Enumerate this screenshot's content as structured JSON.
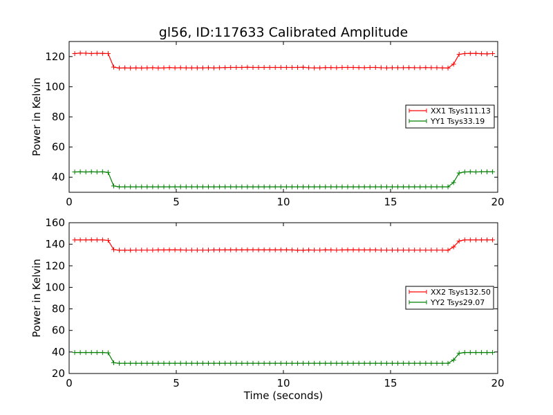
{
  "chart_data": [
    {
      "type": "line",
      "title": "gl56, ID:117633 Calibrated Amplitude",
      "xlabel": "",
      "ylabel": "Power in Kelvin",
      "xlim": [
        0,
        20
      ],
      "ylim": [
        30,
        130
      ],
      "xticks": [
        "0",
        "5",
        "10",
        "15",
        "20"
      ],
      "yticks": [
        "40",
        "60",
        "80",
        "100",
        "120"
      ],
      "ytick_values": [
        40,
        60,
        80,
        100,
        120
      ],
      "legend_position": "center-right",
      "grid": false,
      "series": [
        {
          "name": "XX1 Tsys111.13",
          "color": "#ff0000",
          "marker": "plus",
          "x": [
            0.26,
            0.52,
            0.78,
            1.04,
            1.3,
            1.56,
            1.82,
            2.08,
            2.34,
            2.6,
            2.86,
            3.12,
            3.38,
            3.64,
            3.9,
            4.16,
            4.42,
            4.68,
            4.94,
            5.2,
            5.46,
            5.72,
            5.98,
            6.24,
            6.5,
            6.76,
            7.02,
            7.28,
            7.54,
            7.8,
            8.06,
            8.32,
            8.58,
            8.84,
            9.1,
            9.36,
            9.62,
            9.88,
            10.14,
            10.4,
            10.66,
            10.92,
            11.18,
            11.44,
            11.7,
            11.96,
            12.22,
            12.48,
            12.74,
            13.0,
            13.26,
            13.52,
            13.78,
            14.04,
            14.3,
            14.56,
            14.82,
            15.08,
            15.34,
            15.6,
            15.86,
            16.12,
            16.38,
            16.64,
            16.9,
            17.16,
            17.42,
            17.68,
            17.94,
            18.2,
            18.46,
            18.72,
            18.98,
            19.24,
            19.5,
            19.76
          ],
          "y": [
            122,
            122.3,
            122.2,
            122,
            122.2,
            122.1,
            122,
            113,
            112.4,
            112.5,
            112.4,
            112.5,
            112.4,
            112.5,
            112.6,
            112.4,
            112.5,
            112.7,
            112.5,
            112.6,
            112.5,
            112.5,
            112.5,
            112.5,
            112.6,
            112.5,
            112.6,
            112.7,
            112.8,
            112.8,
            112.8,
            112.9,
            112.8,
            112.8,
            112.8,
            112.8,
            112.8,
            112.8,
            112.8,
            112.8,
            112.8,
            112.9,
            112.6,
            112.5,
            112.5,
            112.7,
            112.7,
            112.6,
            112.8,
            112.8,
            112.8,
            112.7,
            112.6,
            112.8,
            112.8,
            112.6,
            112.5,
            112.6,
            112.6,
            112.6,
            112.7,
            112.6,
            112.6,
            112.7,
            112.6,
            112.6,
            112.5,
            112.4,
            115,
            121.5,
            122,
            122.1,
            122.1,
            121.9,
            121.8,
            122
          ]
        },
        {
          "name": "YY1 Tsys33.19",
          "color": "#008000",
          "marker": "plus",
          "x": [
            0.26,
            0.52,
            0.78,
            1.04,
            1.3,
            1.56,
            1.82,
            2.08,
            2.34,
            2.6,
            2.86,
            3.12,
            3.38,
            3.64,
            3.9,
            4.16,
            4.42,
            4.68,
            4.94,
            5.2,
            5.46,
            5.72,
            5.98,
            6.24,
            6.5,
            6.76,
            7.02,
            7.28,
            7.54,
            7.8,
            8.06,
            8.32,
            8.58,
            8.84,
            9.1,
            9.36,
            9.62,
            9.88,
            10.14,
            10.4,
            10.66,
            10.92,
            11.18,
            11.44,
            11.7,
            11.96,
            12.22,
            12.48,
            12.74,
            13.0,
            13.26,
            13.52,
            13.78,
            14.04,
            14.3,
            14.56,
            14.82,
            15.08,
            15.34,
            15.6,
            15.86,
            16.12,
            16.38,
            16.64,
            16.9,
            17.16,
            17.42,
            17.68,
            17.94,
            18.2,
            18.46,
            18.72,
            18.98,
            19.24,
            19.5,
            19.76
          ],
          "y": [
            43.5,
            43.6,
            43.5,
            43.6,
            43.5,
            43.6,
            43.2,
            34.2,
            33.6,
            33.6,
            33.6,
            33.6,
            33.6,
            33.6,
            33.6,
            33.6,
            33.6,
            33.6,
            33.6,
            33.6,
            33.6,
            33.6,
            33.6,
            33.6,
            33.6,
            33.6,
            33.6,
            33.6,
            33.6,
            33.6,
            33.6,
            33.6,
            33.6,
            33.6,
            33.6,
            33.6,
            33.6,
            33.6,
            33.6,
            33.6,
            33.6,
            33.6,
            33.6,
            33.6,
            33.6,
            33.6,
            33.6,
            33.6,
            33.6,
            33.6,
            33.6,
            33.6,
            33.6,
            33.6,
            33.6,
            33.6,
            33.6,
            33.6,
            33.6,
            33.6,
            33.6,
            33.6,
            33.6,
            33.6,
            33.6,
            33.6,
            33.6,
            33.6,
            36.5,
            42.8,
            43.5,
            43.6,
            43.5,
            43.6,
            43.6,
            43.6
          ]
        }
      ]
    },
    {
      "type": "line",
      "title": "",
      "xlabel": "Time (seconds)",
      "ylabel": "Power in Kelvin",
      "xlim": [
        0,
        20
      ],
      "ylim": [
        20,
        160
      ],
      "xticks": [
        "0",
        "5",
        "10",
        "15",
        "20"
      ],
      "yticks": [
        "20",
        "40",
        "60",
        "80",
        "100",
        "120",
        "140",
        "160"
      ],
      "ytick_values": [
        20,
        40,
        60,
        80,
        100,
        120,
        140,
        160
      ],
      "legend_position": "center-right",
      "grid": false,
      "series": [
        {
          "name": "XX2 Tsys132.50",
          "color": "#ff0000",
          "marker": "plus",
          "x": [
            0.26,
            0.52,
            0.78,
            1.04,
            1.3,
            1.56,
            1.82,
            2.08,
            2.34,
            2.6,
            2.86,
            3.12,
            3.38,
            3.64,
            3.9,
            4.16,
            4.42,
            4.68,
            4.94,
            5.2,
            5.46,
            5.72,
            5.98,
            6.24,
            6.5,
            6.76,
            7.02,
            7.28,
            7.54,
            7.8,
            8.06,
            8.32,
            8.58,
            8.84,
            9.1,
            9.36,
            9.62,
            9.88,
            10.14,
            10.4,
            10.66,
            10.92,
            11.18,
            11.44,
            11.7,
            11.96,
            12.22,
            12.48,
            12.74,
            13.0,
            13.26,
            13.52,
            13.78,
            14.04,
            14.3,
            14.56,
            14.82,
            15.08,
            15.34,
            15.6,
            15.86,
            16.12,
            16.38,
            16.64,
            16.9,
            17.16,
            17.42,
            17.68,
            17.94,
            18.2,
            18.46,
            18.72,
            18.98,
            19.24,
            19.5,
            19.76
          ],
          "y": [
            144,
            144,
            144,
            144.1,
            144,
            144,
            143.6,
            135,
            134.5,
            134.5,
            134.5,
            134.6,
            134.6,
            134.6,
            134.6,
            134.7,
            134.7,
            134.8,
            134.8,
            134.7,
            134.6,
            134.6,
            134.6,
            134.6,
            134.6,
            134.7,
            134.7,
            134.8,
            134.8,
            134.8,
            134.8,
            134.8,
            134.9,
            134.8,
            134.8,
            134.8,
            134.8,
            134.8,
            134.8,
            134.7,
            134.5,
            134.5,
            134.7,
            134.6,
            134.6,
            134.8,
            134.7,
            134.6,
            134.7,
            134.8,
            134.8,
            134.7,
            134.7,
            134.7,
            134.7,
            134.6,
            134.6,
            134.6,
            134.6,
            134.6,
            134.6,
            134.6,
            134.6,
            134.6,
            134.6,
            134.6,
            134.6,
            134.5,
            137.5,
            143,
            144,
            144,
            144,
            144,
            144,
            144
          ]
        },
        {
          "name": "YY2 Tsys29.07",
          "color": "#008000",
          "marker": "plus",
          "x": [
            0.26,
            0.52,
            0.78,
            1.04,
            1.3,
            1.56,
            1.82,
            2.08,
            2.34,
            2.6,
            2.86,
            3.12,
            3.38,
            3.64,
            3.9,
            4.16,
            4.42,
            4.68,
            4.94,
            5.2,
            5.46,
            5.72,
            5.98,
            6.24,
            6.5,
            6.76,
            7.02,
            7.28,
            7.54,
            7.8,
            8.06,
            8.32,
            8.58,
            8.84,
            9.1,
            9.36,
            9.62,
            9.88,
            10.14,
            10.4,
            10.66,
            10.92,
            11.18,
            11.44,
            11.7,
            11.96,
            12.22,
            12.48,
            12.74,
            13.0,
            13.26,
            13.52,
            13.78,
            14.04,
            14.3,
            14.56,
            14.82,
            15.08,
            15.34,
            15.6,
            15.86,
            16.12,
            16.38,
            16.64,
            16.9,
            17.16,
            17.42,
            17.68,
            17.94,
            18.2,
            18.46,
            18.72,
            18.98,
            19.24,
            19.5,
            19.76
          ],
          "y": [
            39.5,
            39.5,
            39.5,
            39.5,
            39.5,
            39.5,
            39.2,
            30,
            29.5,
            29.5,
            29.5,
            29.5,
            29.5,
            29.5,
            29.5,
            29.5,
            29.5,
            29.5,
            29.5,
            29.5,
            29.5,
            29.5,
            29.5,
            29.5,
            29.5,
            29.5,
            29.5,
            29.5,
            29.5,
            29.5,
            29.5,
            29.5,
            29.5,
            29.5,
            29.5,
            29.5,
            29.5,
            29.5,
            29.5,
            29.5,
            29.5,
            29.5,
            29.5,
            29.5,
            29.5,
            29.5,
            29.5,
            29.5,
            29.5,
            29.5,
            29.5,
            29.5,
            29.5,
            29.5,
            29.5,
            29.5,
            29.5,
            29.5,
            29.5,
            29.5,
            29.5,
            29.5,
            29.5,
            29.5,
            29.5,
            29.5,
            29.5,
            29.5,
            32.5,
            38.8,
            39.5,
            39.5,
            39.5,
            39.5,
            39.5,
            39.5
          ]
        }
      ]
    }
  ]
}
